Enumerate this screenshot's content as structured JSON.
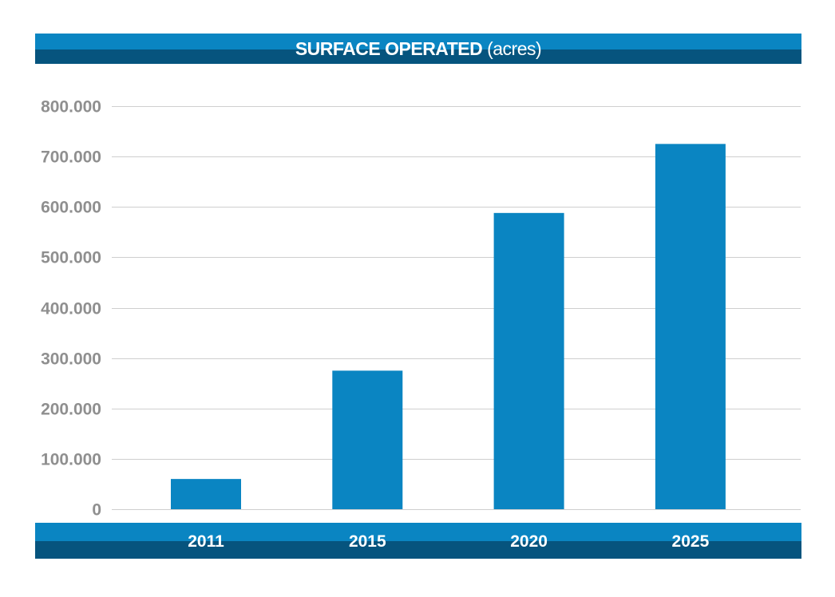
{
  "chart_data": {
    "type": "bar",
    "title_bold": "SURFACE OPERATED",
    "title_rest": "(acres)",
    "categories": [
      "2011",
      "2015",
      "2020",
      "2025"
    ],
    "values": [
      60000,
      275000,
      588000,
      725000
    ],
    "ylim": [
      0,
      800000
    ],
    "yticks": [
      {
        "value": 0,
        "label": "0"
      },
      {
        "value": 100000,
        "label": "100.000"
      },
      {
        "value": 200000,
        "label": "200.000"
      },
      {
        "value": 300000,
        "label": "300.000"
      },
      {
        "value": 400000,
        "label": "400.000"
      },
      {
        "value": 500000,
        "label": "500.000"
      },
      {
        "value": 600000,
        "label": "600.000"
      },
      {
        "value": 700000,
        "label": "700.000"
      },
      {
        "value": 800000,
        "label": "800.000"
      }
    ],
    "xlabel": "",
    "ylabel": "",
    "grid": true,
    "colors": {
      "bar": "#0a85c2",
      "band_light": "#0a85c2",
      "band_dark": "#06547e",
      "tick": "#8f8f8f",
      "grid": "#cfcfcf"
    }
  }
}
